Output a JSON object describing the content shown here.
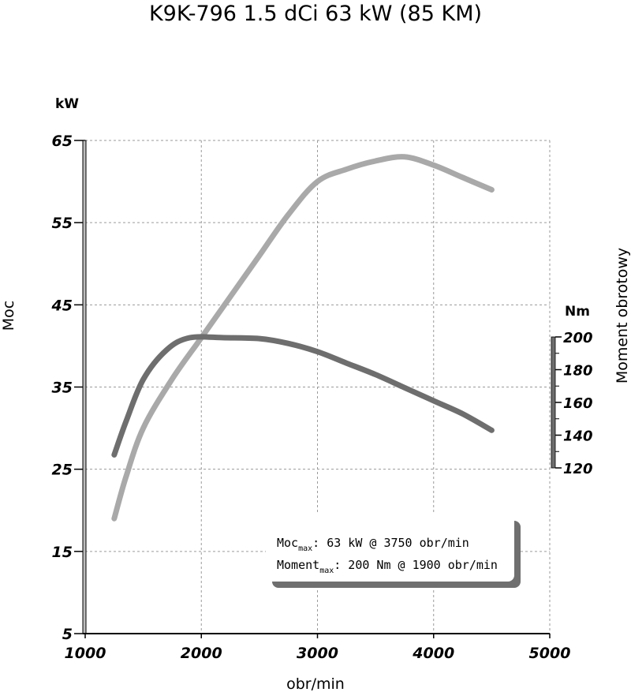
{
  "chart_data": {
    "type": "line",
    "title": "K9K-796 1.5 dCi 63 kW (85 KM)",
    "xlabel": "obr/min",
    "ylabel_left": "Moc",
    "ylabel_right": "Moment obrotowy",
    "unit_left": "kW",
    "unit_right": "Nm",
    "xlim": [
      1000,
      5000
    ],
    "ylim_left": [
      5,
      65
    ],
    "ylim_right": [
      120,
      200
    ],
    "x_ticks": [
      "1000",
      "2000",
      "3000",
      "4000",
      "5000"
    ],
    "y_ticks_left": [
      "5",
      "15",
      "25",
      "35",
      "45",
      "55",
      "65"
    ],
    "y_ticks_right": [
      "120",
      "140",
      "160",
      "180",
      "200"
    ],
    "grid": true,
    "series": [
      {
        "name": "Moc",
        "axis": "left",
        "color": "#a9a9a9",
        "x": [
          1250,
          1350,
          1500,
          1750,
          2000,
          2250,
          2500,
          2750,
          3000,
          3250,
          3500,
          3750,
          4000,
          4250,
          4500
        ],
        "y": [
          19,
          24,
          30,
          36,
          41,
          46,
          51,
          56,
          60,
          61.5,
          62.5,
          63,
          62,
          60.5,
          59
        ]
      },
      {
        "name": "Moment obrotowy",
        "axis": "right",
        "color": "#6e6e6e",
        "x": [
          1250,
          1350,
          1500,
          1700,
          1900,
          2200,
          2500,
          2750,
          3000,
          3250,
          3500,
          3750,
          4000,
          4250,
          4500
        ],
        "y": [
          128,
          148,
          174,
          192,
          199.5,
          199.5,
          199,
          196,
          191,
          184,
          177,
          169,
          161,
          153,
          143
        ]
      }
    ],
    "info_box": {
      "line1_main": "Moc",
      "line1_sub": "max",
      "line1_rest": ": 63 kW @ 3750 obr/min",
      "line2_main": "Moment",
      "line2_sub": "max",
      "line2_rest": ": 200 Nm @ 1900 obr/min"
    }
  }
}
